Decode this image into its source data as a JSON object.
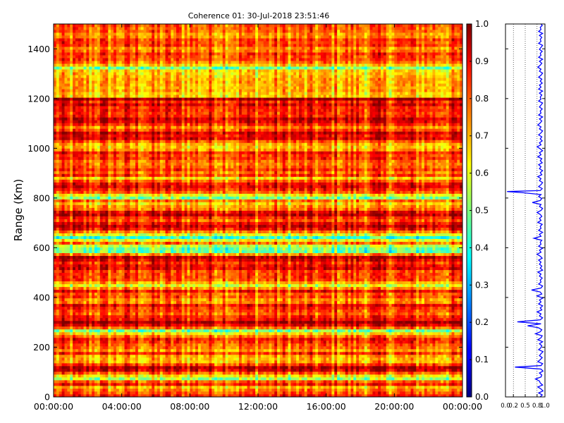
{
  "chart_data": [
    {
      "type": "heatmap",
      "title": "Coherence 01: 30-Jul-2018 23:51:46",
      "xlabel": "",
      "ylabel": "Range (Km)",
      "x_ticks": [
        "00:00:00",
        "04:00:00",
        "08:00:00",
        "12:00:00",
        "16:00:00",
        "20:00:00",
        "00:00:00"
      ],
      "y_ticks": [
        0,
        200,
        400,
        600,
        800,
        1000,
        1200,
        1400
      ],
      "ylim": [
        0,
        1500
      ],
      "colorscale": "jet",
      "clim": [
        0.0,
        1.0
      ],
      "colorbar_ticks": [
        "0.0",
        "0.1",
        "0.2",
        "0.3",
        "0.4",
        "0.5",
        "0.6",
        "0.7",
        "0.8",
        "0.9",
        "1.0"
      ],
      "range_profile_km": [
        [
          0,
          0.78
        ],
        [
          10,
          0.84
        ],
        [
          20,
          0.72
        ],
        [
          30,
          0.8
        ],
        [
          40,
          0.7
        ],
        [
          50,
          0.82
        ],
        [
          60,
          0.76
        ],
        [
          70,
          0.6
        ],
        [
          75,
          0.45
        ],
        [
          85,
          0.68
        ],
        [
          95,
          0.78
        ],
        [
          105,
          0.9
        ],
        [
          115,
          0.95
        ],
        [
          125,
          0.85
        ],
        [
          135,
          0.72
        ],
        [
          150,
          0.62
        ],
        [
          160,
          0.7
        ],
        [
          175,
          0.8
        ],
        [
          190,
          0.68
        ],
        [
          200,
          0.74
        ],
        [
          215,
          0.82
        ],
        [
          230,
          0.88
        ],
        [
          245,
          0.78
        ],
        [
          260,
          0.6
        ],
        [
          265,
          0.45
        ],
        [
          275,
          0.7
        ],
        [
          290,
          0.86
        ],
        [
          300,
          0.92
        ],
        [
          310,
          0.95
        ],
        [
          320,
          0.82
        ],
        [
          335,
          0.75
        ],
        [
          350,
          0.8
        ],
        [
          365,
          0.86
        ],
        [
          380,
          0.78
        ],
        [
          395,
          0.7
        ],
        [
          410,
          0.8
        ],
        [
          425,
          0.85
        ],
        [
          440,
          0.72
        ],
        [
          450,
          0.6
        ],
        [
          460,
          0.75
        ],
        [
          475,
          0.84
        ],
        [
          490,
          0.76
        ],
        [
          505,
          0.82
        ],
        [
          520,
          0.88
        ],
        [
          535,
          0.8
        ],
        [
          550,
          0.85
        ],
        [
          565,
          0.9
        ],
        [
          575,
          0.72
        ],
        [
          585,
          0.5
        ],
        [
          595,
          0.45
        ],
        [
          605,
          0.55
        ],
        [
          615,
          0.7
        ],
        [
          625,
          0.78
        ],
        [
          635,
          0.5
        ],
        [
          645,
          0.42
        ],
        [
          655,
          0.6
        ],
        [
          665,
          0.8
        ],
        [
          680,
          0.86
        ],
        [
          695,
          0.9
        ],
        [
          710,
          0.82
        ],
        [
          725,
          0.88
        ],
        [
          740,
          0.92
        ],
        [
          755,
          0.8
        ],
        [
          770,
          0.72
        ],
        [
          780,
          0.65
        ],
        [
          790,
          0.78
        ],
        [
          800,
          0.45
        ],
        [
          810,
          0.6
        ],
        [
          820,
          0.8
        ],
        [
          835,
          0.88
        ],
        [
          850,
          0.92
        ],
        [
          865,
          0.78
        ],
        [
          880,
          0.7
        ],
        [
          895,
          0.84
        ],
        [
          910,
          0.76
        ],
        [
          925,
          0.82
        ],
        [
          940,
          0.7
        ],
        [
          955,
          0.78
        ],
        [
          970,
          0.86
        ],
        [
          985,
          0.8
        ],
        [
          1000,
          0.72
        ],
        [
          1015,
          0.62
        ],
        [
          1025,
          0.76
        ],
        [
          1040,
          0.88
        ],
        [
          1055,
          0.9
        ],
        [
          1070,
          0.82
        ],
        [
          1085,
          0.78
        ],
        [
          1100,
          0.86
        ],
        [
          1115,
          0.92
        ],
        [
          1130,
          0.84
        ],
        [
          1145,
          0.8
        ],
        [
          1160,
          0.9
        ],
        [
          1175,
          0.86
        ],
        [
          1190,
          0.8
        ],
        [
          1200,
          0.95
        ],
        [
          1210,
          0.7
        ],
        [
          1225,
          0.62
        ],
        [
          1240,
          0.72
        ],
        [
          1255,
          0.68
        ],
        [
          1270,
          0.78
        ],
        [
          1285,
          0.66
        ],
        [
          1300,
          0.72
        ],
        [
          1315,
          0.6
        ],
        [
          1325,
          0.5
        ],
        [
          1335,
          0.62
        ],
        [
          1350,
          0.74
        ],
        [
          1365,
          0.82
        ],
        [
          1380,
          0.78
        ],
        [
          1395,
          0.7
        ],
        [
          1410,
          0.84
        ],
        [
          1425,
          0.76
        ],
        [
          1440,
          0.82
        ],
        [
          1455,
          0.7
        ],
        [
          1470,
          0.78
        ],
        [
          1485,
          0.72
        ],
        [
          1500,
          0.8
        ]
      ]
    },
    {
      "type": "line",
      "orientation": "vertical-profile",
      "x_ticks": [
        "0.0",
        "0.2",
        "0.5",
        "0.8",
        "1.0"
      ],
      "xlim": [
        0.0,
        1.0
      ],
      "ylim": [
        0,
        1500
      ],
      "grid": "vertical-dotted",
      "color": "#0000ff",
      "profile_km": [
        [
          0,
          0.88
        ],
        [
          8,
          0.93
        ],
        [
          16,
          0.84
        ],
        [
          24,
          0.95
        ],
        [
          32,
          0.9
        ],
        [
          40,
          0.82
        ],
        [
          48,
          0.94
        ],
        [
          56,
          0.88
        ],
        [
          64,
          0.86
        ],
        [
          72,
          0.76
        ],
        [
          80,
          0.9
        ],
        [
          88,
          0.92
        ],
        [
          96,
          0.86
        ],
        [
          104,
          0.95
        ],
        [
          112,
          0.9
        ],
        [
          120,
          0.24
        ],
        [
          126,
          0.9
        ],
        [
          134,
          0.94
        ],
        [
          142,
          0.82
        ],
        [
          150,
          0.88
        ],
        [
          158,
          0.93
        ],
        [
          166,
          0.86
        ],
        [
          174,
          0.9
        ],
        [
          182,
          0.95
        ],
        [
          190,
          0.84
        ],
        [
          198,
          0.9
        ],
        [
          206,
          0.92
        ],
        [
          214,
          0.86
        ],
        [
          222,
          0.94
        ],
        [
          230,
          0.82
        ],
        [
          238,
          0.9
        ],
        [
          246,
          0.93
        ],
        [
          254,
          0.76
        ],
        [
          262,
          0.88
        ],
        [
          270,
          0.92
        ],
        [
          278,
          0.84
        ],
        [
          286,
          0.56
        ],
        [
          294,
          0.9
        ],
        [
          302,
          0.3
        ],
        [
          310,
          0.88
        ],
        [
          318,
          0.94
        ],
        [
          326,
          0.86
        ],
        [
          334,
          0.9
        ],
        [
          342,
          0.8
        ],
        [
          350,
          0.92
        ],
        [
          358,
          0.88
        ],
        [
          366,
          0.94
        ],
        [
          374,
          0.84
        ],
        [
          382,
          0.9
        ],
        [
          390,
          0.86
        ],
        [
          398,
          0.95
        ],
        [
          406,
          0.8
        ],
        [
          414,
          0.92
        ],
        [
          422,
          0.88
        ],
        [
          430,
          0.66
        ],
        [
          438,
          0.9
        ],
        [
          446,
          0.94
        ],
        [
          454,
          0.84
        ],
        [
          462,
          0.9
        ],
        [
          470,
          0.88
        ],
        [
          478,
          0.93
        ],
        [
          486,
          0.86
        ],
        [
          494,
          0.9
        ],
        [
          502,
          0.82
        ],
        [
          510,
          0.94
        ],
        [
          518,
          0.88
        ],
        [
          526,
          0.92
        ],
        [
          534,
          0.86
        ],
        [
          542,
          0.9
        ],
        [
          550,
          0.84
        ],
        [
          558,
          0.93
        ],
        [
          566,
          0.88
        ],
        [
          574,
          0.8
        ],
        [
          582,
          0.9
        ],
        [
          590,
          0.86
        ],
        [
          598,
          0.94
        ],
        [
          606,
          0.84
        ],
        [
          614,
          0.9
        ],
        [
          622,
          0.88
        ],
        [
          630,
          0.92
        ],
        [
          638,
          0.72
        ],
        [
          646,
          0.9
        ],
        [
          654,
          0.86
        ],
        [
          662,
          0.94
        ],
        [
          670,
          0.84
        ],
        [
          678,
          0.9
        ],
        [
          686,
          0.88
        ],
        [
          694,
          0.93
        ],
        [
          702,
          0.82
        ],
        [
          710,
          0.9
        ],
        [
          718,
          0.86
        ],
        [
          726,
          0.92
        ],
        [
          734,
          0.88
        ],
        [
          742,
          0.8
        ],
        [
          750,
          0.9
        ],
        [
          758,
          0.94
        ],
        [
          766,
          0.86
        ],
        [
          774,
          0.9
        ],
        [
          782,
          0.68
        ],
        [
          790,
          0.88
        ],
        [
          798,
          0.92
        ],
        [
          806,
          0.84
        ],
        [
          814,
          0.9
        ],
        [
          822,
          0.4
        ],
        [
          826,
          0.04
        ],
        [
          830,
          0.88
        ],
        [
          838,
          0.93
        ],
        [
          846,
          0.84
        ],
        [
          854,
          0.9
        ],
        [
          862,
          0.94
        ],
        [
          870,
          0.86
        ],
        [
          878,
          0.9
        ],
        [
          886,
          0.82
        ],
        [
          894,
          0.92
        ],
        [
          902,
          0.88
        ],
        [
          910,
          0.94
        ],
        [
          918,
          0.86
        ],
        [
          926,
          0.9
        ],
        [
          934,
          0.84
        ],
        [
          942,
          0.93
        ],
        [
          950,
          0.88
        ],
        [
          958,
          0.92
        ],
        [
          966,
          0.82
        ],
        [
          974,
          0.9
        ],
        [
          982,
          0.86
        ],
        [
          990,
          0.94
        ],
        [
          998,
          0.88
        ],
        [
          1006,
          0.8
        ],
        [
          1014,
          0.9
        ],
        [
          1022,
          0.86
        ],
        [
          1030,
          0.93
        ],
        [
          1038,
          0.88
        ],
        [
          1046,
          0.92
        ],
        [
          1054,
          0.84
        ],
        [
          1062,
          0.9
        ],
        [
          1070,
          0.94
        ],
        [
          1078,
          0.86
        ],
        [
          1086,
          0.9
        ],
        [
          1094,
          0.82
        ],
        [
          1102,
          0.88
        ],
        [
          1110,
          0.92
        ],
        [
          1118,
          0.86
        ],
        [
          1126,
          0.94
        ],
        [
          1134,
          0.84
        ],
        [
          1142,
          0.9
        ],
        [
          1150,
          0.88
        ],
        [
          1158,
          0.93
        ],
        [
          1166,
          0.86
        ],
        [
          1174,
          0.9
        ],
        [
          1182,
          0.94
        ],
        [
          1190,
          0.84
        ],
        [
          1198,
          0.9
        ],
        [
          1206,
          0.88
        ],
        [
          1214,
          0.92
        ],
        [
          1222,
          0.86
        ],
        [
          1230,
          0.94
        ],
        [
          1238,
          0.84
        ],
        [
          1246,
          0.9
        ],
        [
          1254,
          0.86
        ],
        [
          1262,
          0.93
        ],
        [
          1270,
          0.88
        ],
        [
          1278,
          0.92
        ],
        [
          1286,
          0.84
        ],
        [
          1294,
          0.9
        ],
        [
          1302,
          0.94
        ],
        [
          1310,
          0.86
        ],
        [
          1318,
          0.9
        ],
        [
          1326,
          0.82
        ],
        [
          1334,
          0.88
        ],
        [
          1342,
          0.92
        ],
        [
          1350,
          0.86
        ],
        [
          1358,
          0.94
        ],
        [
          1366,
          0.84
        ],
        [
          1374,
          0.9
        ],
        [
          1382,
          0.88
        ],
        [
          1390,
          0.93
        ],
        [
          1398,
          0.86
        ],
        [
          1406,
          0.9
        ],
        [
          1414,
          0.94
        ],
        [
          1422,
          0.84
        ],
        [
          1430,
          0.9
        ],
        [
          1438,
          0.88
        ],
        [
          1446,
          0.92
        ],
        [
          1454,
          0.86
        ],
        [
          1462,
          0.94
        ],
        [
          1470,
          0.84
        ],
        [
          1478,
          0.9
        ],
        [
          1486,
          0.88
        ],
        [
          1494,
          0.93
        ],
        [
          1500,
          0.9
        ]
      ]
    }
  ]
}
